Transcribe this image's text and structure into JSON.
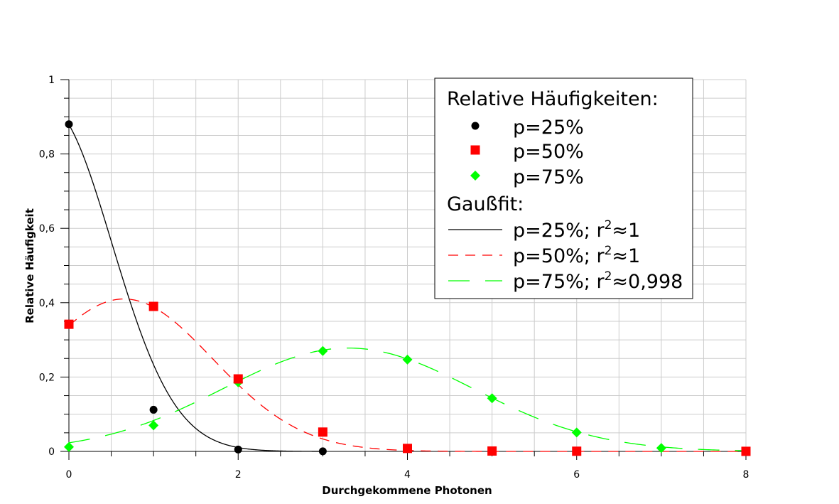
{
  "chart_data": {
    "type": "scatter",
    "title": "",
    "xlabel": "Durchgekommene Photonen",
    "ylabel": "Relative Häufigkeit",
    "xlim": [
      0,
      8
    ],
    "ylim": [
      0,
      1
    ],
    "x_ticks": [
      0,
      2,
      4,
      6,
      8
    ],
    "x_tick_labels": [
      "0",
      "2",
      "4",
      "6",
      "8"
    ],
    "y_ticks": [
      0,
      0.2,
      0.4,
      0.6,
      0.8,
      1
    ],
    "y_tick_labels": [
      "0",
      "0,2",
      "0,4",
      "0,6",
      "0,8",
      "1"
    ],
    "grid": true,
    "legend_position": "top-right",
    "legend": {
      "heading_points": "Relative Häufigkeiten:",
      "heading_fits": "Gaußfit:",
      "point_labels": [
        "p=25%",
        "p=50%",
        "p=75%"
      ],
      "fit_labels": [
        {
          "text": "p=25%; r",
          "sup": "2",
          "tail": "≈1"
        },
        {
          "text": "p=50%; r",
          "sup": "2",
          "tail": "≈1"
        },
        {
          "text": "p=75%; r",
          "sup": "2",
          "tail": "≈0,998"
        }
      ]
    },
    "series": [
      {
        "name": "p=25%",
        "marker": "circle",
        "color": "#000000",
        "x": [
          0,
          1,
          2,
          3
        ],
        "values": [
          0.88,
          0.112,
          0.005,
          0.0003
        ]
      },
      {
        "name": "p=50%",
        "marker": "square",
        "color": "#ff0000",
        "x": [
          0,
          1,
          2,
          3,
          4,
          5,
          6,
          8
        ],
        "values": [
          0.342,
          0.39,
          0.195,
          0.052,
          0.008,
          0.001,
          0.0005,
          0.0002
        ]
      },
      {
        "name": "p=75%",
        "marker": "diamond",
        "color": "#00ff00",
        "x": [
          0,
          1,
          2,
          3,
          4,
          5,
          6,
          7
        ],
        "values": [
          0.012,
          0.07,
          0.186,
          0.27,
          0.247,
          0.143,
          0.051,
          0.009
        ]
      }
    ],
    "fits": [
      {
        "name": "p=25%; r²≈1",
        "color": "#000000",
        "dash": "",
        "mu": -0.245,
        "sigma": 0.7495,
        "amp": 0.927,
        "x_range": [
          0,
          3
        ]
      },
      {
        "name": "p=50%; r²≈1",
        "color": "#ff0000",
        "dash": "14 10",
        "mu": 0.651,
        "sigma": 1.0495,
        "amp": 0.41,
        "x_range": [
          0,
          8
        ]
      },
      {
        "name": "p=75%; r²≈0,998",
        "color": "#00ff00",
        "dash": "30 22",
        "mu": 3.3,
        "sigma": 1.48,
        "amp": 0.278,
        "x_range": [
          0,
          8
        ]
      }
    ]
  }
}
